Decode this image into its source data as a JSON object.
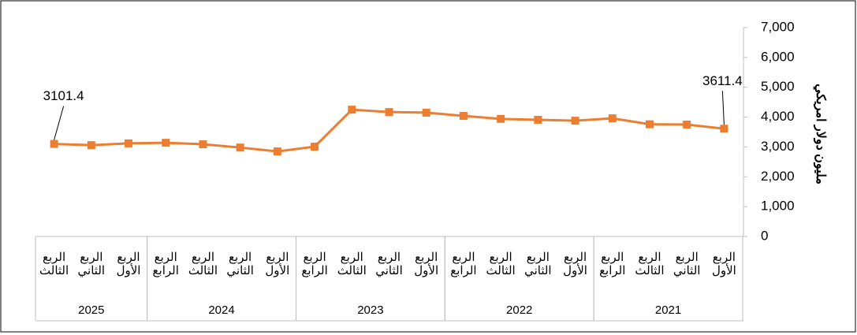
{
  "chart_data": {
    "type": "line",
    "y_title": "مليون دولار امريكي",
    "groups": [
      {
        "label": "2021",
        "categories": [
          "الربع الأول",
          "الربع الثاني",
          "الربع الثالث",
          "الربع الرابع"
        ]
      },
      {
        "label": "2022",
        "categories": [
          "الربع الأول",
          "الربع الثاني",
          "الربع الثالث",
          "الربع الرابع"
        ]
      },
      {
        "label": "2023",
        "categories": [
          "الربع الأول",
          "الربع الثاني",
          "الربع الثالث",
          "الربع الرابع"
        ]
      },
      {
        "label": "2024",
        "categories": [
          "الربع الأول",
          "الربع الثاني",
          "الربع الثالث",
          "الربع الرابع"
        ]
      },
      {
        "label": "2025",
        "categories": [
          "الربع الأول",
          "الربع الثاني",
          "الربع الثالث"
        ]
      }
    ],
    "series": [
      {
        "color": "#ED7D31",
        "values": [
          3611.4,
          3750,
          3760,
          3960,
          3880,
          3910,
          3940,
          4040,
          4150,
          4170,
          4250,
          3010,
          2850,
          2980,
          3090,
          3140,
          3120,
          3060,
          3101.4
        ],
        "value_labels": [
          "3611.4",
          null,
          null,
          null,
          null,
          null,
          null,
          null,
          null,
          null,
          null,
          null,
          null,
          null,
          null,
          null,
          null,
          null,
          "3101.4"
        ]
      }
    ],
    "ylim": [
      0,
      7000
    ],
    "yticks": [
      0,
      {
        "value": 1000,
        "label": "1,000"
      },
      {
        "value": 2000,
        "label": "2,000"
      },
      {
        "value": 3000,
        "label": "3,000"
      },
      {
        "value": 4000,
        "label": "4,000"
      },
      {
        "value": 5000,
        "label": "5,000"
      },
      {
        "value": 6000,
        "label": "6,000"
      },
      {
        "value": 7000,
        "label": "7,000"
      }
    ],
    "x_direction": "rtl"
  }
}
